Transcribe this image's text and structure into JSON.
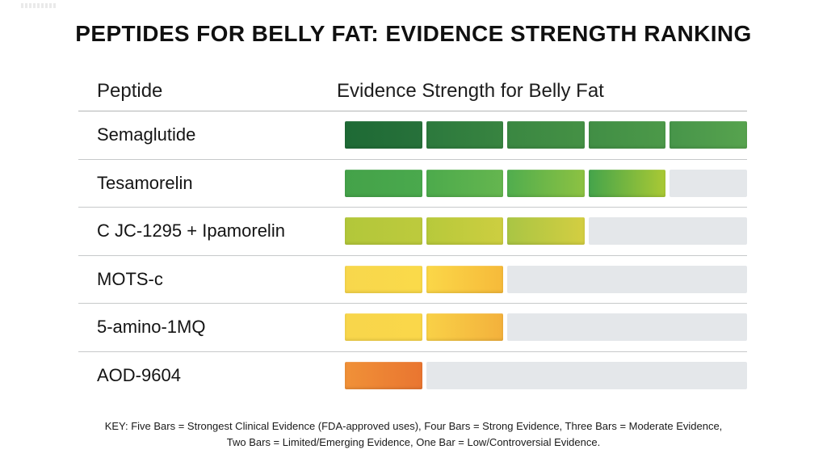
{
  "page": {
    "title": "PEPTIDES FOR BELLY FAT: EVIDENCE STRENGTH RANKING",
    "table_header": {
      "peptide": "Peptide",
      "evidence": "Evidence Strength for Belly Fat"
    },
    "key": {
      "line1": "KEY: Five Bars = Strongest Clinical Evidence (FDA-approved uses), Four Bars = Strong Evidence, Three Bars = Moderate Evidence,",
      "line2": "Two Bars = Limited/Emerging Evidence, One Bar = Low/Controversial Evidence."
    },
    "colors": {
      "background": "#ffffff",
      "empty_track": "#e4e7ea",
      "row_divider": "#c7c9ca",
      "header_divider": "#b2b4b5",
      "title_text": "#101010"
    }
  },
  "chart_data": {
    "type": "bar",
    "title": "PEPTIDES FOR BELLY FAT: EVIDENCE STRENGTH RANKING",
    "xlabel": "Evidence Strength for Belly Fat",
    "ylabel": "Peptide",
    "orientation": "horizontal",
    "max_bars": 5,
    "xlim": [
      0,
      5
    ],
    "grid": false,
    "legend_position": "bottom-caption",
    "categories": [
      "Semaglutide",
      "Tesamorelin",
      "C JC-1295 + Ipamorelin",
      "MOTS-c",
      "5-amino-1MQ",
      "AOD-9604"
    ],
    "values": [
      5,
      4,
      3,
      2,
      2,
      1
    ],
    "value_meanings": {
      "5": "Strongest Clinical Evidence (FDA-approved uses)",
      "4": "Strong Evidence",
      "3": "Moderate Evidence",
      "2": "Limited/Emerging Evidence",
      "1": "Low/Controversial Evidence"
    },
    "rows": [
      {
        "label": "Semaglutide",
        "bars": 5,
        "segments": [
          [
            "#1e6a35",
            "#27713a"
          ],
          [
            "#2c793d",
            "#388440"
          ],
          [
            "#3a8742",
            "#459145"
          ],
          [
            "#418e45",
            "#4c9949"
          ],
          [
            "#47954a",
            "#57a34e"
          ]
        ]
      },
      {
        "label": "Tesamorelin",
        "bars": 4,
        "segments": [
          [
            "#44a249",
            "#4aa94d"
          ],
          [
            "#4caa4c",
            "#65b64f"
          ],
          [
            "#50ad4e",
            "#8dc242"
          ],
          [
            "#44a44b",
            "#aac934"
          ]
        ]
      },
      {
        "label": "C JC-1295 + Ipamorelin",
        "bars": 3,
        "segments": [
          [
            "#b2c73a",
            "#bdca3d"
          ],
          [
            "#b7c93b",
            "#cdce40"
          ],
          [
            "#a9c544",
            "#d4ce41"
          ]
        ]
      },
      {
        "label": "MOTS-c",
        "bars": 2,
        "segments": [
          [
            "#f8d74c",
            "#fada4a"
          ],
          [
            "#fbd748",
            "#f6ba3a"
          ]
        ]
      },
      {
        "label": "5-amino-1MQ",
        "bars": 2,
        "segments": [
          [
            "#f8d64b",
            "#fad74a"
          ],
          [
            "#f9d147",
            "#f3b13c"
          ]
        ]
      },
      {
        "label": "AOD-9604",
        "bars": 1,
        "segments": [
          [
            "#f09138",
            "#e97530"
          ]
        ]
      }
    ]
  }
}
